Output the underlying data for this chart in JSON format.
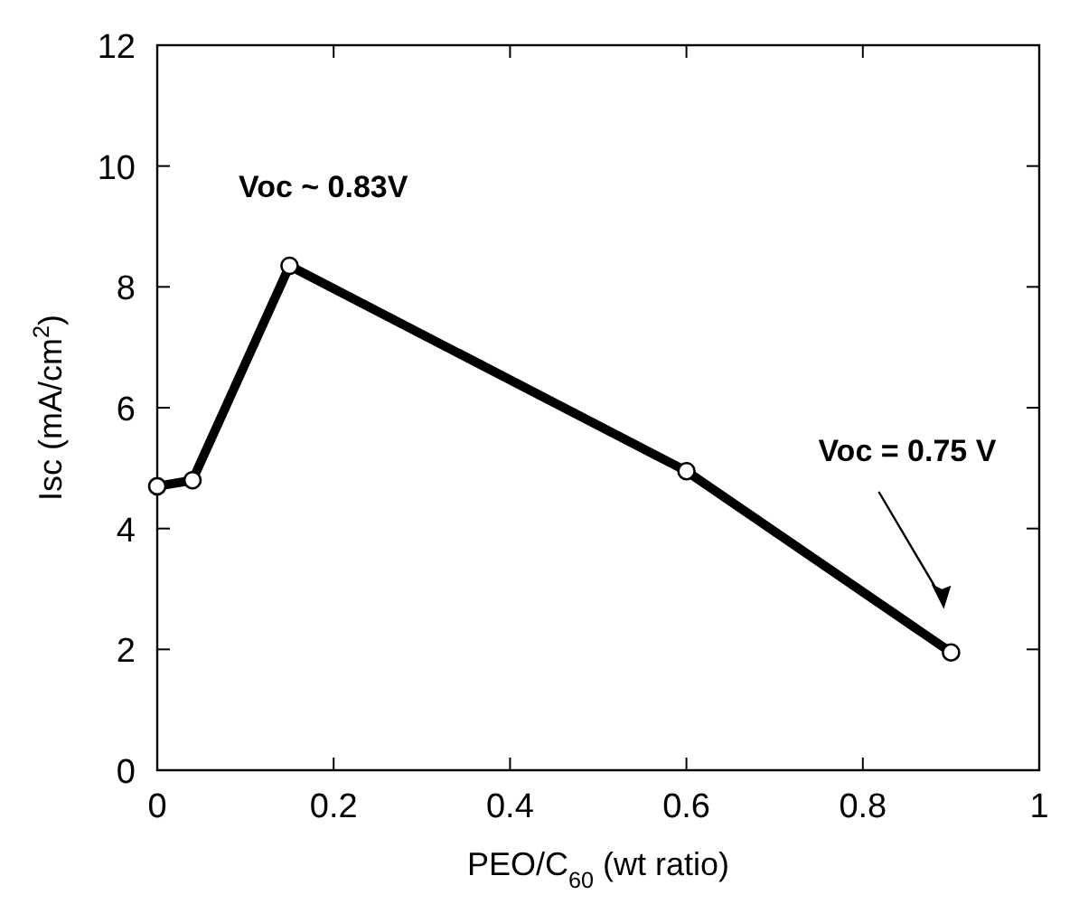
{
  "chart_data": {
    "type": "line",
    "xlabel": "PEO/C$_{60}$ (wt ratio)",
    "ylabel": "Isc (mA/cm$^{2}$)",
    "x": [
      0,
      0.04,
      0.15,
      0.6,
      0.9
    ],
    "series": [
      {
        "color": "#000000",
        "values": [
          4.7,
          4.8,
          8.35,
          4.95,
          1.95
        ]
      }
    ],
    "xlim": [
      0,
      1
    ],
    "xticks": [
      0,
      0.2,
      0.4,
      0.6,
      0.8,
      1
    ],
    "ylim": [
      0,
      12
    ],
    "yticks": [
      0,
      2,
      4,
      6,
      8,
      10,
      12
    ],
    "marker": "circle",
    "line_style": "solid",
    "annotations": [
      "Voc ~ 0.83V",
      "Voc = 0.75 V"
    ]
  }
}
